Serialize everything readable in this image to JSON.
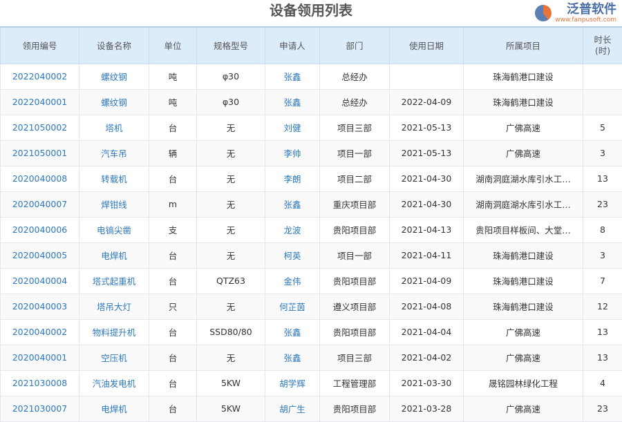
{
  "title": "设备领用列表",
  "columns": [
    "领用编号",
    "设备名称",
    "单位",
    "规格型号",
    "申请人",
    "部门",
    "使用日期",
    "所属项目",
    "时长(时)"
  ],
  "rows": [
    [
      "2022040002",
      "螺纹钢",
      "吨",
      "φ30",
      "张鑫",
      "总经办",
      "",
      "珠海鹤港口建设",
      ""
    ],
    [
      "2022040001",
      "螺纹钢",
      "吨",
      "φ30",
      "张鑫",
      "总经办",
      "2022-04-09",
      "珠海鹤港口建设",
      ""
    ],
    [
      "2021050002",
      "塔机",
      "台",
      "无",
      "刘健",
      "项目三部",
      "2021-05-13",
      "广佛高速",
      "5"
    ],
    [
      "2021050001",
      "汽车吊",
      "辆",
      "无",
      "李帅",
      "项目一部",
      "2021-05-13",
      "广佛高速",
      "3"
    ],
    [
      "2020040008",
      "转载机",
      "台",
      "无",
      "李朗",
      "项目二部",
      "2021-04-30",
      "湖南洞庭湖水库引水工…",
      "13"
    ],
    [
      "2020040007",
      "焊钳线",
      "m",
      "无",
      "张鑫",
      "重庆项目部",
      "2021-04-30",
      "湖南洞庭湖水库引水工…",
      "23"
    ],
    [
      "2020040006",
      "电镐尖凿",
      "支",
      "无",
      "龙波",
      "贵阳项目部",
      "2021-04-13",
      "贵阳项目样板间、大堂…",
      "8"
    ],
    [
      "2020040005",
      "电焊机",
      "台",
      "无",
      "柯英",
      "项目一部",
      "2021-04-11",
      "珠海鹤港口建设",
      "3"
    ],
    [
      "2020040004",
      "塔式起重机",
      "台",
      "QTZ63",
      "金伟",
      "贵阳项目部",
      "2021-04-09",
      "珠海鹤港口建设",
      "7"
    ],
    [
      "2020040003",
      "塔吊大灯",
      "只",
      "无",
      "何芷茵",
      "遵义项目部",
      "2021-04-08",
      "珠海鹤港口建设",
      "12"
    ],
    [
      "2020040002",
      "物料提升机",
      "台",
      "SSD80/80",
      "张鑫",
      "贵阳项目部",
      "2021-04-04",
      "广佛高速",
      "13"
    ],
    [
      "2020040001",
      "空压机",
      "台",
      "无",
      "张鑫",
      "项目三部",
      "2021-04-02",
      "广佛高速",
      "13"
    ],
    [
      "2021030008",
      "汽油发电机",
      "台",
      "5KW",
      "胡学辉",
      "工程管理部",
      "2021-03-30",
      "晟铭园林绿化工程",
      "4"
    ],
    [
      "2021030007",
      "电焊机",
      "台",
      "5KW",
      "胡广生",
      "贵阳项目部",
      "2021-03-28",
      "广佛高速",
      "23"
    ]
  ],
  "watermark": {
    "brand": "泛普软件",
    "url": "www.fanpusoft.com"
  },
  "colors": {
    "header_bg": "#ddecfb",
    "link": "#2c78bd"
  }
}
